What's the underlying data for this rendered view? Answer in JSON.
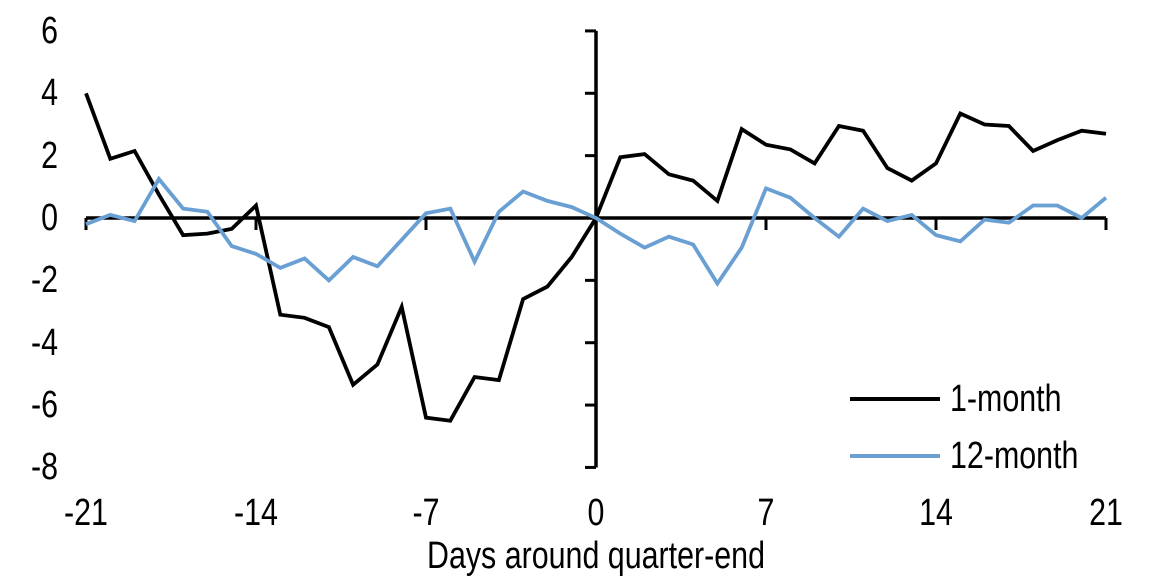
{
  "chart_data": {
    "type": "line",
    "title": "",
    "xlabel": "Days around quarter-end",
    "ylabel": "",
    "xlim": [
      -21,
      21
    ],
    "ylim": [
      -8,
      6
    ],
    "xticks": [
      -21,
      -14,
      -7,
      0,
      7,
      14,
      21
    ],
    "yticks": [
      6,
      4,
      2,
      0,
      -2,
      -4,
      -6,
      -8
    ],
    "grid": false,
    "legend_position": "lower right",
    "axis_color": "#000000",
    "x": [
      -21,
      -20,
      -19,
      -18,
      -17,
      -16,
      -15,
      -14,
      -13,
      -12,
      -11,
      -10,
      -9,
      -8,
      -7,
      -6,
      -5,
      -4,
      -3,
      -2,
      -1,
      0,
      1,
      2,
      3,
      4,
      5,
      6,
      7,
      8,
      9,
      10,
      11,
      12,
      13,
      14,
      15,
      16,
      17,
      18,
      19,
      20,
      21
    ],
    "series": [
      {
        "name": "1-month",
        "color": "#000000",
        "values": [
          4.0,
          1.9,
          2.15,
          0.75,
          -0.55,
          -0.5,
          -0.35,
          0.4,
          -3.1,
          -3.2,
          -3.5,
          -5.35,
          -4.7,
          -2.85,
          -6.4,
          -6.5,
          -5.1,
          -5.2,
          -2.6,
          -2.2,
          -1.25,
          0.0,
          1.95,
          2.05,
          1.4,
          1.2,
          0.55,
          2.85,
          2.35,
          2.2,
          1.75,
          2.95,
          2.8,
          1.6,
          1.2,
          1.75,
          3.35,
          3.0,
          2.95,
          2.15,
          2.5,
          2.8,
          2.7
        ]
      },
      {
        "name": "12-month",
        "color": "#6A9FD4",
        "values": [
          -0.2,
          0.1,
          -0.1,
          1.25,
          0.3,
          0.2,
          -0.9,
          -1.15,
          -1.6,
          -1.3,
          -2.0,
          -1.25,
          -1.55,
          -0.7,
          0.15,
          0.3,
          -1.4,
          0.2,
          0.85,
          0.55,
          0.35,
          0.0,
          -0.5,
          -0.95,
          -0.6,
          -0.85,
          -2.1,
          -0.95,
          0.95,
          0.65,
          0.0,
          -0.6,
          0.3,
          -0.1,
          0.1,
          -0.55,
          -0.75,
          -0.05,
          -0.15,
          0.4,
          0.4,
          0.0,
          0.65
        ]
      }
    ]
  }
}
